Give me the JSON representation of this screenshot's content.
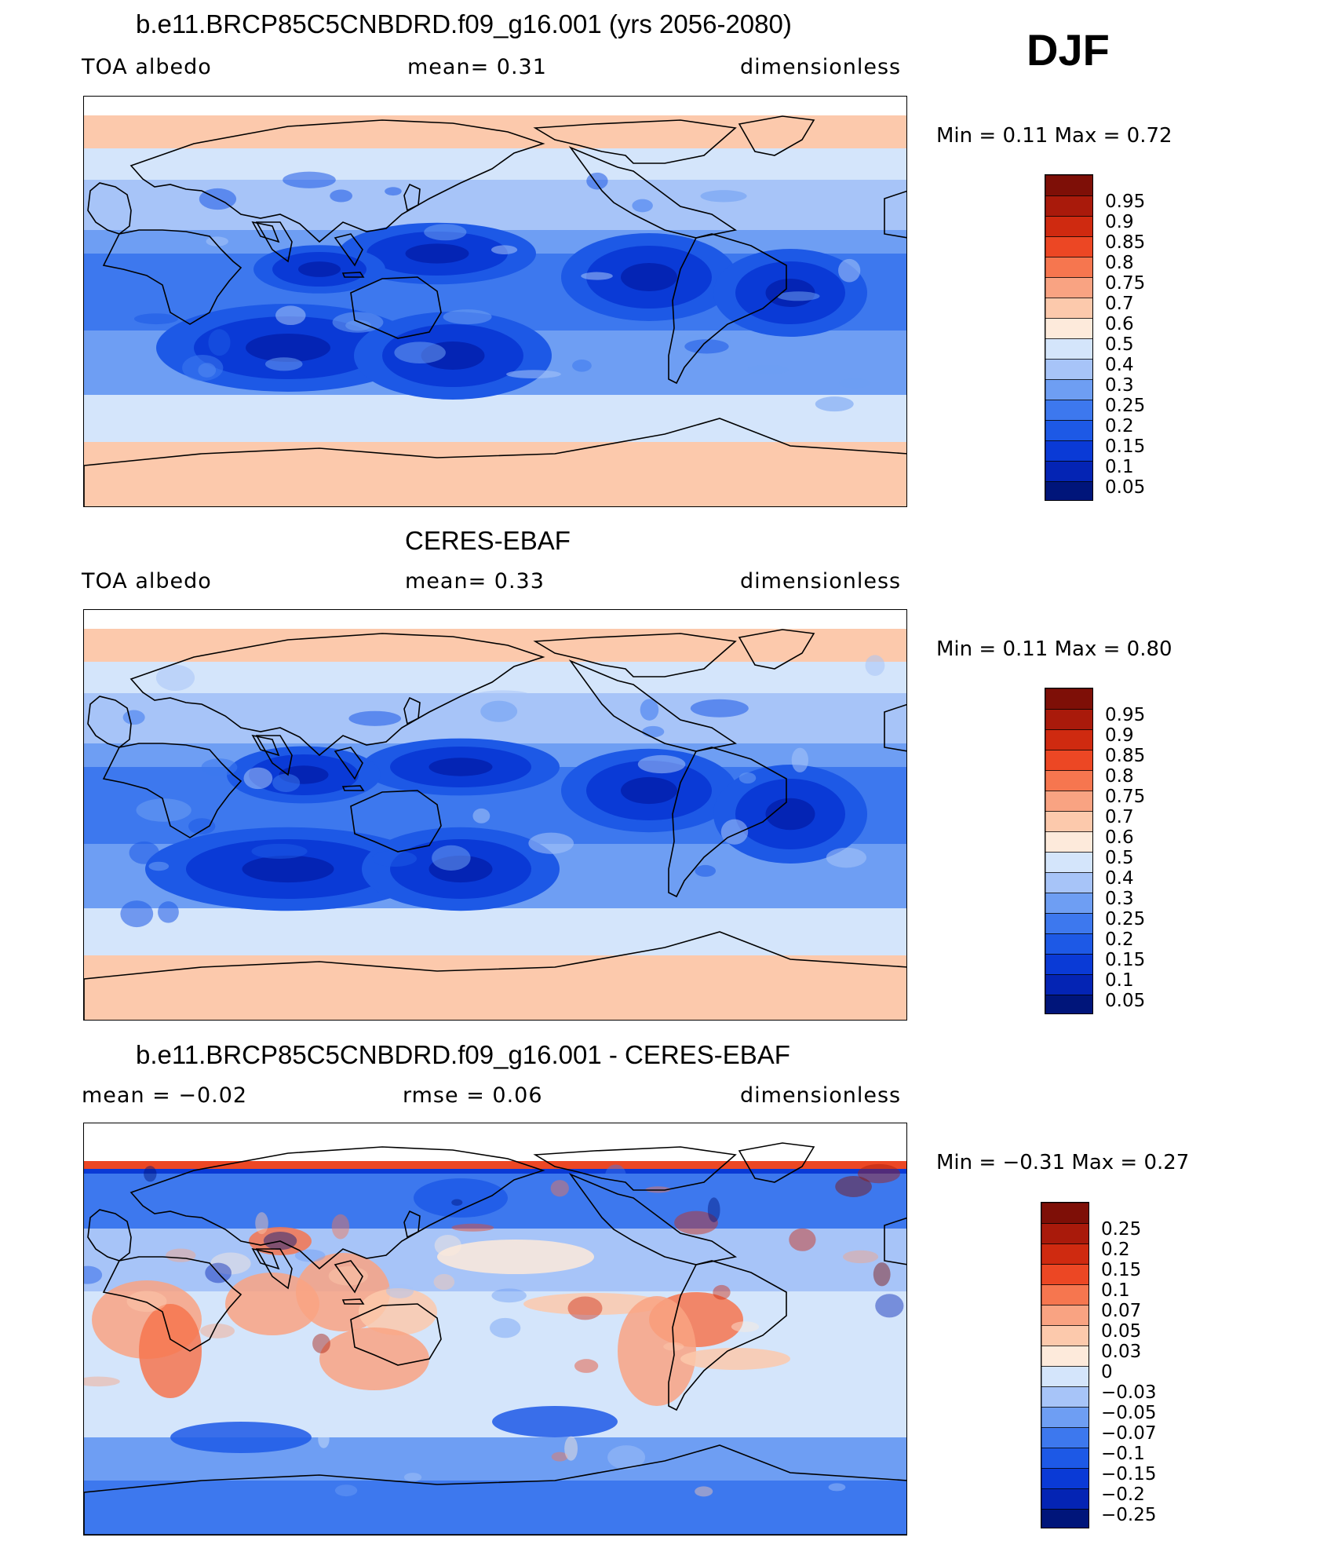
{
  "season": "DJF",
  "panels": [
    {
      "title": "b.e11.BRCP85C5CNBDRD.f09_g16.001 (yrs 2056-2080)",
      "left_label": "TOA  albedo",
      "mid_label": "mean=     0.31",
      "right_label": "dimensionless",
      "min_text": "Min  =     0.11  Max  =     0.72",
      "type": "field",
      "colors": [
        "#00157a",
        "#0424b4",
        "#0a3ad6",
        "#1d59e6",
        "#3d78ee",
        "#6e9ef3",
        "#a7c4f8",
        "#d4e5fb",
        "#fdeadb",
        "#fcc9ac",
        "#f9a382",
        "#f6764f",
        "#ec4724",
        "#cf2a10",
        "#a91a0b",
        "#7e0f07"
      ],
      "labels": [
        "0.05",
        "0.1",
        "0.15",
        "0.2",
        "0.25",
        "0.3",
        "0.4",
        "0.5",
        "0.6",
        "0.7",
        "0.75",
        "0.8",
        "0.85",
        "0.9",
        "0.95"
      ]
    },
    {
      "title": "CERES-EBAF",
      "left_label": "TOA  albedo",
      "mid_label": "mean=     0.33",
      "right_label": "dimensionless",
      "min_text": "Min  =     0.11  Max  =     0.80",
      "type": "field",
      "colors": [
        "#00157a",
        "#0424b4",
        "#0a3ad6",
        "#1d59e6",
        "#3d78ee",
        "#6e9ef3",
        "#a7c4f8",
        "#d4e5fb",
        "#fdeadb",
        "#fcc9ac",
        "#f9a382",
        "#f6764f",
        "#ec4724",
        "#cf2a10",
        "#a91a0b",
        "#7e0f07"
      ],
      "labels": [
        "0.05",
        "0.1",
        "0.15",
        "0.2",
        "0.25",
        "0.3",
        "0.4",
        "0.5",
        "0.6",
        "0.7",
        "0.75",
        "0.8",
        "0.85",
        "0.9",
        "0.95"
      ]
    },
    {
      "title": "b.e11.BRCP85C5CNBDRD.f09_g16.001 - CERES-EBAF",
      "left_label": "mean  =    −0.02",
      "mid_label": "rmse  =     0.06",
      "right_label": "dimensionless",
      "min_text": "Min  =   −0.31  Max  =     0.27",
      "type": "diff",
      "colors": [
        "#00157a",
        "#0424b4",
        "#0a3ad6",
        "#1d59e6",
        "#3d78ee",
        "#6e9ef3",
        "#a7c4f8",
        "#d4e5fb",
        "#fdeadb",
        "#fcc9ac",
        "#f9a382",
        "#f6764f",
        "#ec4724",
        "#cf2a10",
        "#a91a0b",
        "#7e0f07"
      ],
      "labels": [
        "−0.25",
        "−0.2",
        "−0.15",
        "−0.1",
        "−0.07",
        "−0.05",
        "−0.03",
        "0",
        "0.03",
        "0.05",
        "0.07",
        "0.1",
        "0.15",
        "0.2",
        "0.25"
      ]
    }
  ]
}
